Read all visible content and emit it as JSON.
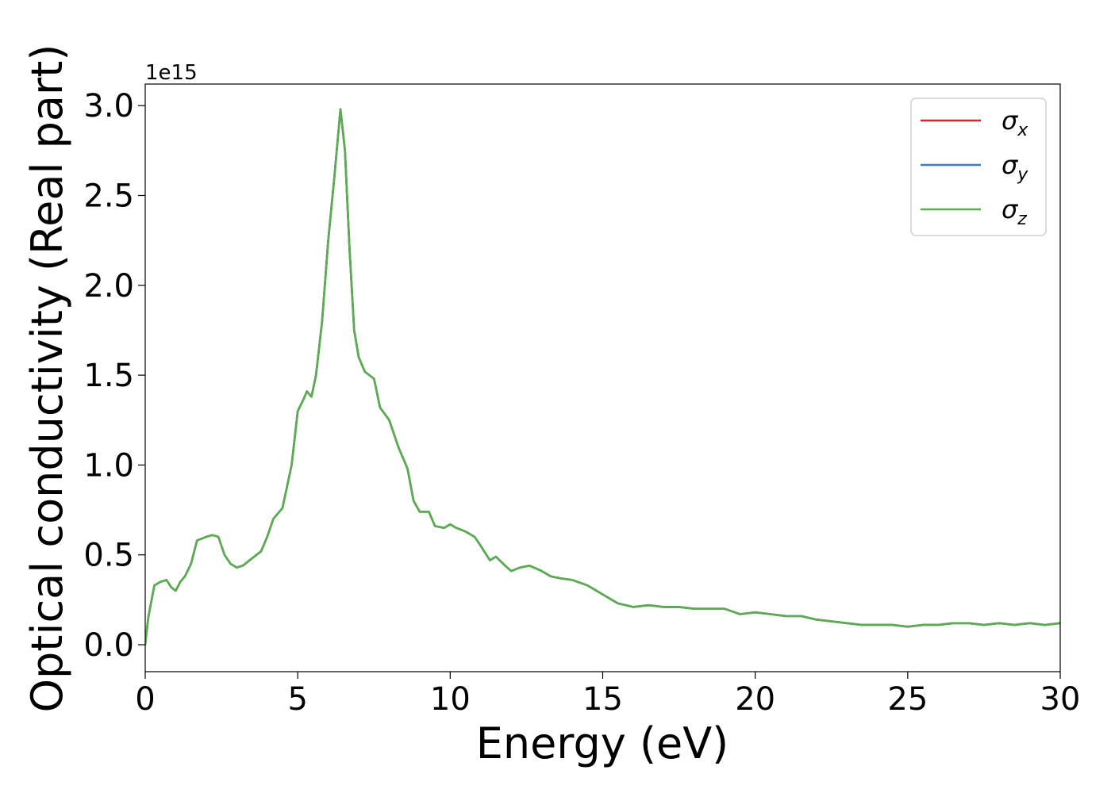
{
  "chart_data": {
    "type": "line",
    "title": "",
    "xlabel": "Energy (eV)",
    "ylabel": "Optical conductivity (Real part)",
    "y_offset_label": "1e15",
    "xlim": [
      0,
      30
    ],
    "ylim": [
      -0.15,
      3.12
    ],
    "y_unit_multiplier": 1000000000000000.0,
    "xticks": [
      0,
      5,
      10,
      15,
      20,
      25,
      30
    ],
    "xtick_labels": [
      "0",
      "5",
      "10",
      "15",
      "20",
      "25",
      "30"
    ],
    "yticks": [
      0.0,
      0.5,
      1.0,
      1.5,
      2.0,
      2.5,
      3.0
    ],
    "ytick_labels": [
      "0.0",
      "0.5",
      "1.0",
      "1.5",
      "2.0",
      "2.5",
      "3.0"
    ],
    "grid": false,
    "legend_position": "top-right",
    "x": [
      0,
      0.1,
      0.3,
      0.5,
      0.7,
      0.85,
      1.0,
      1.15,
      1.3,
      1.5,
      1.7,
      1.85,
      2.0,
      2.2,
      2.4,
      2.6,
      2.8,
      3.0,
      3.2,
      3.5,
      3.8,
      4.0,
      4.2,
      4.5,
      4.8,
      5.0,
      5.2,
      5.3,
      5.45,
      5.6,
      5.8,
      6.0,
      6.2,
      6.4,
      6.55,
      6.7,
      6.85,
      7.0,
      7.2,
      7.5,
      7.7,
      8.0,
      8.3,
      8.6,
      8.8,
      9.0,
      9.3,
      9.5,
      9.8,
      10.0,
      10.2,
      10.5,
      10.8,
      11.0,
      11.3,
      11.5,
      11.8,
      12.0,
      12.3,
      12.6,
      13.0,
      13.3,
      13.6,
      14.0,
      14.5,
      15.0,
      15.5,
      16.0,
      16.5,
      17.0,
      17.5,
      18.0,
      18.5,
      19.0,
      19.5,
      20.0,
      20.5,
      21.0,
      21.5,
      22.0,
      22.5,
      23.0,
      23.5,
      24.0,
      24.5,
      25.0,
      25.5,
      26.0,
      26.5,
      27.0,
      27.5,
      28.0,
      28.5,
      29.0,
      29.5,
      30.0
    ],
    "series": [
      {
        "name": "σx",
        "symbol": "σ",
        "subscript": "x",
        "color": "#d62728",
        "values": [
          0.0,
          0.15,
          0.33,
          0.35,
          0.36,
          0.32,
          0.3,
          0.35,
          0.38,
          0.45,
          0.58,
          0.59,
          0.6,
          0.61,
          0.6,
          0.5,
          0.45,
          0.43,
          0.44,
          0.48,
          0.52,
          0.6,
          0.7,
          0.76,
          1.0,
          1.3,
          1.37,
          1.41,
          1.38,
          1.5,
          1.8,
          2.25,
          2.6,
          2.98,
          2.75,
          2.2,
          1.75,
          1.6,
          1.52,
          1.48,
          1.32,
          1.25,
          1.1,
          0.98,
          0.8,
          0.74,
          0.74,
          0.66,
          0.65,
          0.67,
          0.65,
          0.63,
          0.6,
          0.55,
          0.47,
          0.49,
          0.44,
          0.41,
          0.43,
          0.44,
          0.41,
          0.38,
          0.37,
          0.36,
          0.33,
          0.28,
          0.23,
          0.21,
          0.22,
          0.21,
          0.21,
          0.2,
          0.2,
          0.2,
          0.17,
          0.18,
          0.17,
          0.16,
          0.16,
          0.14,
          0.13,
          0.12,
          0.11,
          0.11,
          0.11,
          0.1,
          0.11,
          0.11,
          0.12,
          0.12,
          0.11,
          0.12,
          0.11,
          0.12,
          0.11,
          0.12
        ]
      },
      {
        "name": "σy",
        "symbol": "σ",
        "subscript": "y",
        "color": "#3f7bb6",
        "values": [
          0.0,
          0.15,
          0.33,
          0.35,
          0.36,
          0.32,
          0.3,
          0.35,
          0.38,
          0.45,
          0.58,
          0.59,
          0.6,
          0.61,
          0.6,
          0.5,
          0.45,
          0.43,
          0.44,
          0.48,
          0.52,
          0.6,
          0.7,
          0.76,
          1.0,
          1.3,
          1.37,
          1.41,
          1.38,
          1.5,
          1.8,
          2.25,
          2.6,
          2.98,
          2.75,
          2.2,
          1.75,
          1.6,
          1.52,
          1.48,
          1.32,
          1.25,
          1.1,
          0.98,
          0.8,
          0.74,
          0.74,
          0.66,
          0.65,
          0.67,
          0.65,
          0.63,
          0.6,
          0.55,
          0.47,
          0.49,
          0.44,
          0.41,
          0.43,
          0.44,
          0.41,
          0.38,
          0.37,
          0.36,
          0.33,
          0.28,
          0.23,
          0.21,
          0.22,
          0.21,
          0.21,
          0.2,
          0.2,
          0.2,
          0.17,
          0.18,
          0.17,
          0.16,
          0.16,
          0.14,
          0.13,
          0.12,
          0.11,
          0.11,
          0.11,
          0.1,
          0.11,
          0.11,
          0.12,
          0.12,
          0.11,
          0.12,
          0.11,
          0.12,
          0.11,
          0.12
        ]
      },
      {
        "name": "σz",
        "symbol": "σ",
        "subscript": "z",
        "color": "#5aae4f",
        "values": [
          0.0,
          0.15,
          0.33,
          0.35,
          0.36,
          0.32,
          0.3,
          0.35,
          0.38,
          0.45,
          0.58,
          0.59,
          0.6,
          0.61,
          0.6,
          0.5,
          0.45,
          0.43,
          0.44,
          0.48,
          0.52,
          0.6,
          0.7,
          0.76,
          1.0,
          1.3,
          1.37,
          1.41,
          1.38,
          1.5,
          1.8,
          2.25,
          2.6,
          2.98,
          2.75,
          2.2,
          1.75,
          1.6,
          1.52,
          1.48,
          1.32,
          1.25,
          1.1,
          0.98,
          0.8,
          0.74,
          0.74,
          0.66,
          0.65,
          0.67,
          0.65,
          0.63,
          0.6,
          0.55,
          0.47,
          0.49,
          0.44,
          0.41,
          0.43,
          0.44,
          0.41,
          0.38,
          0.37,
          0.36,
          0.33,
          0.28,
          0.23,
          0.21,
          0.22,
          0.21,
          0.21,
          0.2,
          0.2,
          0.2,
          0.17,
          0.18,
          0.17,
          0.16,
          0.16,
          0.14,
          0.13,
          0.12,
          0.11,
          0.11,
          0.11,
          0.1,
          0.11,
          0.11,
          0.12,
          0.12,
          0.11,
          0.12,
          0.11,
          0.12,
          0.11,
          0.12
        ]
      }
    ]
  }
}
